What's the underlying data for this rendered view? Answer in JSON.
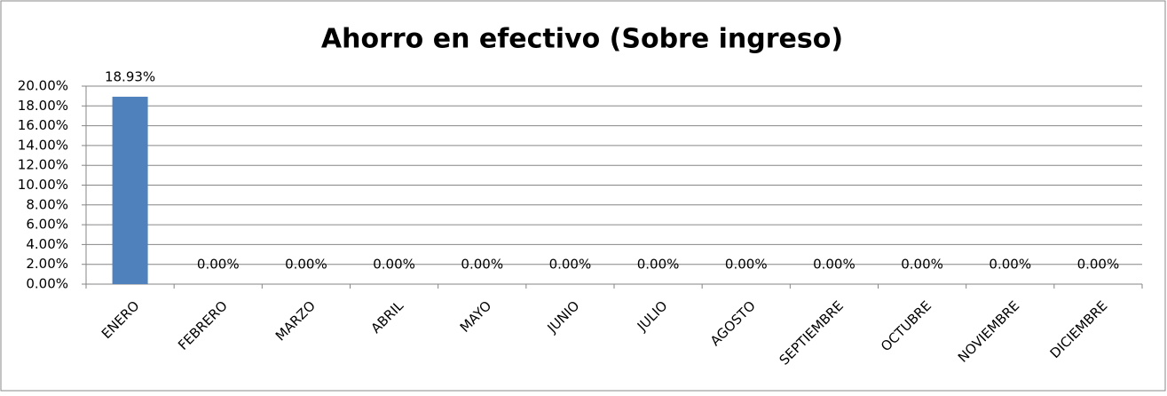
{
  "chart_data": {
    "type": "bar",
    "title": "Ahorro en efectivo (Sobre ingreso)",
    "categories": [
      "ENERO",
      "FEBRERO",
      "MARZO",
      "ABRIL",
      "MAYO",
      "JUNIO",
      "JULIO",
      "AGOSTO",
      "SEPTIEMBRE",
      "OCTUBRE",
      "NOVIEMBRE",
      "DICIEMBRE"
    ],
    "values": [
      18.93,
      0,
      0,
      0,
      0,
      0,
      0,
      0,
      0,
      0,
      0,
      0
    ],
    "value_labels": [
      "18.93%",
      "0.00%",
      "0.00%",
      "0.00%",
      "0.00%",
      "0.00%",
      "0.00%",
      "0.00%",
      "0.00%",
      "0.00%",
      "0.00%",
      "0.00%"
    ],
    "color": "#4f81bd",
    "ylim": [
      0,
      20
    ],
    "yticks": [
      {
        "value": 0,
        "label": "0.00%"
      },
      {
        "value": 2,
        "label": "2.00%"
      },
      {
        "value": 4,
        "label": "4.00%"
      },
      {
        "value": 6,
        "label": "6.00%"
      },
      {
        "value": 8,
        "label": "8.00%"
      },
      {
        "value": 10,
        "label": "10.00%"
      },
      {
        "value": 12,
        "label": "12.00%"
      },
      {
        "value": 14,
        "label": "14.00%"
      },
      {
        "value": 16,
        "label": "16.00%"
      },
      {
        "value": 18,
        "label": "18.00%"
      },
      {
        "value": 20,
        "label": "20.00%"
      }
    ],
    "grid": true
  }
}
